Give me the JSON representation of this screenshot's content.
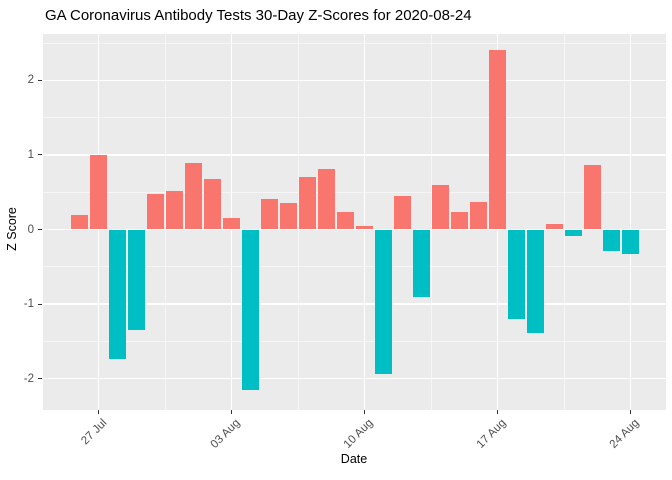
{
  "chart_data": {
    "type": "bar",
    "title": "GA Coronavirus Antibody Tests 30-Day Z-Scores for 2020-08-24",
    "xlabel": "Date",
    "ylabel": "Z Score",
    "x": [
      "2020-07-26",
      "2020-07-27",
      "2020-07-28",
      "2020-07-29",
      "2020-07-30",
      "2020-07-31",
      "2020-08-01",
      "2020-08-02",
      "2020-08-03",
      "2020-08-04",
      "2020-08-05",
      "2020-08-06",
      "2020-08-07",
      "2020-08-08",
      "2020-08-09",
      "2020-08-10",
      "2020-08-11",
      "2020-08-12",
      "2020-08-13",
      "2020-08-14",
      "2020-08-15",
      "2020-08-16",
      "2020-08-17",
      "2020-08-18",
      "2020-08-19",
      "2020-08-20",
      "2020-08-21",
      "2020-08-22",
      "2020-08-23",
      "2020-08-24"
    ],
    "values": [
      0.19,
      1.0,
      -1.73,
      -1.35,
      0.48,
      0.52,
      0.89,
      0.68,
      0.16,
      -2.15,
      0.41,
      0.36,
      0.71,
      0.81,
      0.24,
      0.05,
      -1.94,
      0.45,
      -0.9,
      0.6,
      0.24,
      0.37,
      2.4,
      -1.2,
      -1.39,
      0.08,
      -0.09,
      0.87,
      -0.29,
      -0.33
    ],
    "x_tick_labels": [
      "27 Jul",
      "03 Aug",
      "10 Aug",
      "17 Aug",
      "24 Aug"
    ],
    "x_tick_indices": [
      1,
      8,
      15,
      22,
      29
    ],
    "y_tick_labels": [
      "-2",
      "-1",
      "0",
      "1",
      "2"
    ],
    "y_tick_values": [
      -2,
      -1,
      0,
      1,
      2
    ],
    "ylim": [
      -2.42,
      2.61
    ],
    "grid": "major-minor",
    "legend": "none",
    "colors": {
      "positive": "#F8766D",
      "negative": "#00BFC4",
      "panel_background": "#EBEBEB",
      "grid_major": "#FFFFFF",
      "axis_text": "#4D4D4D",
      "title_text": "#000000"
    }
  }
}
